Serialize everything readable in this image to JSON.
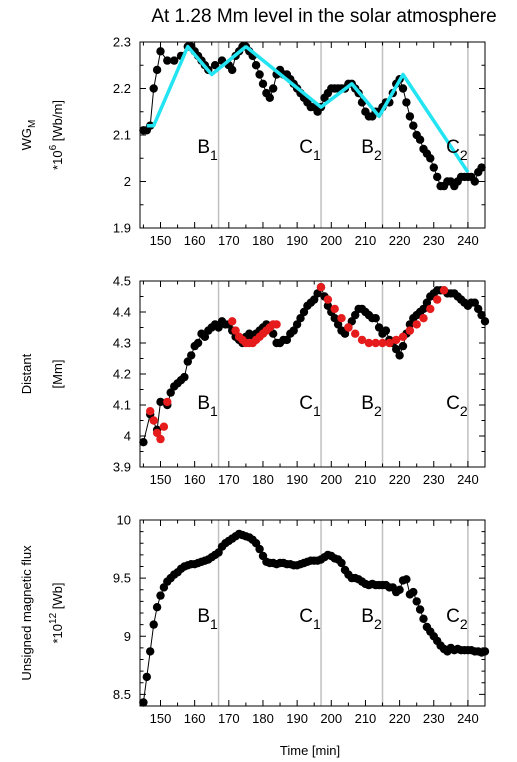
{
  "figure": {
    "title": "At 1.28 Mm level in the solar atmosphere",
    "xlabel": "Time [min]",
    "phases": [
      {
        "label": "B",
        "sub": "1",
        "x": 167
      },
      {
        "label": "C",
        "sub": "1",
        "x": 197
      },
      {
        "label": "B",
        "sub": "2",
        "x": 215
      },
      {
        "label": "C",
        "sub": "2",
        "x": 240
      }
    ]
  },
  "chart_data": [
    {
      "type": "line",
      "ylabel": "WG",
      "ylabel_sub": "M",
      "yunit_prefix": "*10",
      "yunit_exp": "6",
      "yunit": "[Wb/m]",
      "xlim": [
        144,
        245
      ],
      "ylim": [
        1.9,
        2.3
      ],
      "xticks": [
        150,
        160,
        170,
        180,
        190,
        200,
        210,
        220,
        230,
        240
      ],
      "yticks": [
        1.9,
        2,
        2.1,
        2.2,
        2.3
      ],
      "ytick_labels": [
        "1.9",
        "2",
        "2.1",
        "2.2",
        "2.3"
      ],
      "series": [
        {
          "color": "#000000",
          "marker": "circle",
          "x": [
            145,
            146,
            147,
            148,
            149,
            150,
            152,
            154,
            156,
            158,
            159,
            160,
            161,
            162,
            163,
            164,
            166,
            168,
            170,
            171,
            172,
            173,
            174,
            175,
            176,
            177,
            178,
            179,
            180,
            181,
            182,
            183,
            184,
            185,
            186,
            187,
            188,
            189,
            190,
            191,
            192,
            193,
            194,
            195,
            196,
            197,
            198,
            199,
            200,
            201,
            202,
            203,
            204,
            205,
            206,
            207,
            208,
            209,
            210,
            211,
            212,
            213,
            214,
            215,
            216,
            217,
            218,
            219,
            220,
            221,
            222,
            223,
            224,
            225,
            226,
            227,
            228,
            229,
            230,
            231,
            232,
            233,
            234,
            235,
            236,
            237,
            238,
            239,
            240,
            241,
            242,
            243,
            244
          ],
          "y": [
            2.11,
            2.11,
            2.12,
            2.2,
            2.24,
            2.28,
            2.26,
            2.26,
            2.27,
            2.29,
            2.29,
            2.28,
            2.27,
            2.26,
            2.25,
            2.24,
            2.25,
            2.26,
            2.25,
            2.24,
            2.27,
            2.28,
            2.29,
            2.29,
            2.28,
            2.27,
            2.25,
            2.23,
            2.21,
            2.19,
            2.18,
            2.2,
            2.23,
            2.24,
            2.23,
            2.23,
            2.22,
            2.21,
            2.2,
            2.19,
            2.18,
            2.17,
            2.16,
            2.16,
            2.15,
            2.16,
            2.18,
            2.19,
            2.2,
            2.2,
            2.2,
            2.2,
            2.2,
            2.21,
            2.21,
            2.2,
            2.19,
            2.17,
            2.15,
            2.14,
            2.14,
            2.15,
            2.15,
            2.16,
            2.17,
            2.17,
            2.19,
            2.21,
            2.22,
            2.2,
            2.17,
            2.14,
            2.12,
            2.1,
            2.09,
            2.07,
            2.06,
            2.05,
            2.03,
            2.01,
            1.99,
            1.99,
            2,
            2,
            1.99,
            2,
            2.01,
            2.01,
            2.01,
            2.01,
            2,
            2.02,
            2.03
          ]
        },
        {
          "color": "#22e4f2",
          "marker": "none",
          "x": [
            146,
            148,
            158,
            165,
            175,
            197,
            206,
            214,
            221,
            240
          ],
          "y": [
            2.12,
            2.12,
            2.29,
            2.23,
            2.29,
            2.16,
            2.21,
            2.14,
            2.23,
            2.02
          ]
        }
      ]
    },
    {
      "type": "line",
      "ylabel": "Distant",
      "yunit": "[Mm]",
      "xlim": [
        144,
        245
      ],
      "ylim": [
        3.9,
        4.5
      ],
      "xticks": [
        150,
        160,
        170,
        180,
        190,
        200,
        210,
        220,
        230,
        240
      ],
      "yticks": [
        3.9,
        4,
        4.1,
        4.2,
        4.3,
        4.4,
        4.5
      ],
      "ytick_labels": [
        "3.9",
        "4",
        "4.1",
        "4.2",
        "4.3",
        "4.4",
        "4.5"
      ],
      "series": [
        {
          "color": "#000000",
          "marker": "circle",
          "x": [
            145,
            147,
            149,
            150,
            152,
            153,
            154,
            155,
            156,
            157,
            158,
            159,
            160,
            161,
            162,
            163,
            164,
            165,
            166,
            167,
            168,
            169,
            170,
            171,
            172,
            173,
            174,
            175,
            176,
            177,
            178,
            179,
            180,
            181,
            182,
            183,
            184,
            185,
            186,
            187,
            188,
            189,
            190,
            191,
            192,
            193,
            194,
            195,
            196,
            197,
            198,
            199,
            200,
            201,
            202,
            203,
            204,
            205,
            206,
            207,
            208,
            209,
            210,
            211,
            212,
            213,
            214,
            215,
            216,
            217,
            218,
            219,
            220,
            221,
            222,
            223,
            224,
            225,
            226,
            227,
            228,
            229,
            230,
            231,
            232,
            233,
            234,
            235,
            236,
            237,
            238,
            239,
            240,
            241,
            242,
            243,
            244,
            245
          ],
          "y": [
            3.98,
            4.07,
            4.02,
            4.11,
            4.1,
            4.14,
            4.16,
            4.17,
            4.18,
            4.19,
            4.24,
            4.26,
            4.29,
            4.3,
            4.33,
            4.32,
            4.34,
            4.35,
            4.36,
            4.35,
            4.37,
            4.36,
            4.36,
            4.34,
            4.32,
            4.31,
            4.3,
            4.32,
            4.33,
            4.32,
            4.33,
            4.34,
            4.35,
            4.36,
            4.35,
            4.33,
            4.3,
            4.3,
            4.31,
            4.31,
            4.33,
            4.34,
            4.36,
            4.38,
            4.4,
            4.42,
            4.43,
            4.44,
            4.46,
            4.48,
            4.45,
            4.42,
            4.4,
            4.38,
            4.36,
            4.34,
            4.33,
            4.35,
            4.37,
            4.39,
            4.41,
            4.41,
            4.4,
            4.39,
            4.38,
            4.38,
            4.35,
            4.33,
            4.34,
            4.31,
            4.3,
            4.28,
            4.26,
            4.29,
            4.33,
            4.36,
            4.38,
            4.39,
            4.4,
            4.41,
            4.43,
            4.45,
            4.46,
            4.47,
            4.47,
            4.47,
            4.46,
            4.46,
            4.46,
            4.45,
            4.44,
            4.43,
            4.42,
            4.43,
            4.43,
            4.41,
            4.39,
            4.37
          ]
        },
        {
          "color": "#e61b1b",
          "marker": "circle",
          "x": [
            147,
            148,
            149,
            150,
            151,
            152,
            171,
            172,
            173,
            174,
            175,
            176,
            177,
            178,
            179,
            180,
            181,
            182,
            183,
            184,
            197,
            199,
            201,
            203,
            205,
            207,
            209,
            211,
            213,
            215,
            217,
            219,
            221,
            223,
            225,
            227,
            229,
            231,
            233
          ],
          "y": [
            4.08,
            4.05,
            4.01,
            3.99,
            4.03,
            4.11,
            4.37,
            4.34,
            4.32,
            4.31,
            4.3,
            4.3,
            4.3,
            4.31,
            4.32,
            4.33,
            4.34,
            4.35,
            4.36,
            4.36,
            4.48,
            4.44,
            4.41,
            4.38,
            4.35,
            4.33,
            4.31,
            4.3,
            4.3,
            4.3,
            4.3,
            4.31,
            4.32,
            4.34,
            4.36,
            4.38,
            4.41,
            4.44,
            4.47
          ]
        }
      ]
    },
    {
      "type": "line",
      "ylabel": "Unsigned magnetic flux",
      "yunit_prefix": "*10",
      "yunit_exp": "12",
      "yunit": "[Wb]",
      "xlim": [
        144,
        245
      ],
      "ylim": [
        8.4,
        10
      ],
      "xticks": [
        150,
        160,
        170,
        180,
        190,
        200,
        210,
        220,
        230,
        240
      ],
      "yticks": [
        8.5,
        9,
        9.5,
        10
      ],
      "ytick_labels": [
        "8.5",
        "9",
        "9.5",
        "10"
      ],
      "series": [
        {
          "color": "#000000",
          "marker": "circle",
          "x": [
            145,
            146,
            147,
            148,
            149,
            150,
            151,
            152,
            153,
            154,
            155,
            156,
            157,
            158,
            159,
            160,
            161,
            162,
            163,
            164,
            165,
            166,
            167,
            168,
            169,
            170,
            171,
            172,
            173,
            174,
            175,
            176,
            177,
            178,
            179,
            180,
            181,
            182,
            183,
            184,
            185,
            186,
            187,
            188,
            189,
            190,
            191,
            192,
            193,
            194,
            195,
            196,
            197,
            198,
            199,
            200,
            201,
            202,
            203,
            204,
            205,
            206,
            207,
            208,
            209,
            210,
            211,
            212,
            213,
            214,
            215,
            216,
            217,
            218,
            219,
            220,
            221,
            222,
            223,
            224,
            225,
            226,
            227,
            228,
            229,
            230,
            231,
            232,
            233,
            234,
            235,
            236,
            237,
            238,
            239,
            240,
            241,
            242,
            243,
            244,
            245
          ],
          "y": [
            8.43,
            8.65,
            8.87,
            9.1,
            9.25,
            9.35,
            9.42,
            9.47,
            9.5,
            9.53,
            9.55,
            9.58,
            9.6,
            9.61,
            9.62,
            9.62,
            9.63,
            9.64,
            9.65,
            9.66,
            9.68,
            9.7,
            9.72,
            9.77,
            9.8,
            9.82,
            9.84,
            9.86,
            9.88,
            9.87,
            9.86,
            9.85,
            9.83,
            9.8,
            9.75,
            9.69,
            9.64,
            9.63,
            9.63,
            9.62,
            9.63,
            9.63,
            9.62,
            9.62,
            9.61,
            9.61,
            9.62,
            9.63,
            9.64,
            9.65,
            9.65,
            9.65,
            9.66,
            9.68,
            9.7,
            9.69,
            9.67,
            9.66,
            9.63,
            9.57,
            9.53,
            9.5,
            9.5,
            9.49,
            9.47,
            9.45,
            9.44,
            9.45,
            9.44,
            9.44,
            9.44,
            9.44,
            9.42,
            9.42,
            9.38,
            9.4,
            9.48,
            9.49,
            9.36,
            9.38,
            9.3,
            9.23,
            9.15,
            9.08,
            9.04,
            9,
            8.96,
            8.92,
            8.89,
            8.87,
            8.9,
            8.88,
            8.89,
            8.88,
            8.88,
            8.88,
            8.88,
            8.87,
            8.87,
            8.86,
            8.87
          ]
        }
      ]
    }
  ]
}
